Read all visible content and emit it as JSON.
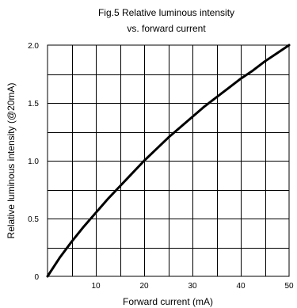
{
  "chart_data": {
    "type": "line",
    "title_lines": [
      "Fig.5 Relative luminous intensity",
      "vs. forward current"
    ],
    "xlabel": "Forward current (mA)",
    "ylabel": "Relative luminous intensity (@20mA)",
    "xlim": [
      0,
      50
    ],
    "ylim": [
      0,
      2.0
    ],
    "grid": true,
    "x_ticks": [
      0,
      10,
      20,
      30,
      40,
      50
    ],
    "x_tick_labels": [
      "",
      "10",
      "20",
      "30",
      "40",
      "50"
    ],
    "y_ticks": [
      0,
      0.5,
      1.0,
      1.5,
      2.0
    ],
    "y_tick_labels": [
      "0",
      "0.5",
      "1.0",
      "1.5",
      "2.0"
    ],
    "x_grid_step": 5,
    "y_grid_step": 0.25,
    "series": [
      {
        "color": "#000000",
        "x": [
          0,
          2.5,
          5,
          7.5,
          10,
          12.5,
          15,
          17.5,
          20,
          22.5,
          25,
          27.5,
          30,
          32.5,
          35,
          37.5,
          40,
          42.5,
          45,
          47.5,
          50
        ],
        "y": [
          0,
          0.16,
          0.3,
          0.43,
          0.55,
          0.67,
          0.78,
          0.89,
          1.0,
          1.1,
          1.2,
          1.29,
          1.38,
          1.47,
          1.55,
          1.63,
          1.71,
          1.78,
          1.86,
          1.93,
          2.0
        ]
      }
    ]
  }
}
